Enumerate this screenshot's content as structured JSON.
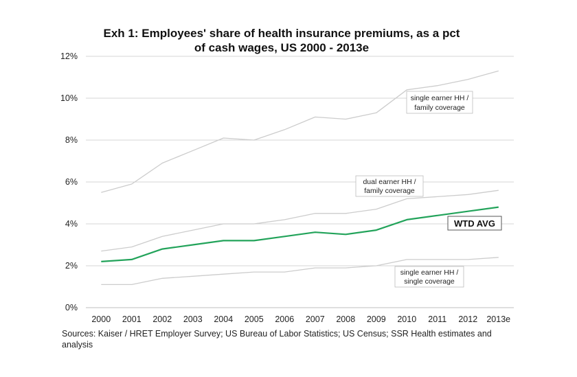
{
  "chart_data": {
    "type": "line",
    "title_lines": [
      "Exh 1: Employees' share of health insurance premiums, as a pct",
      "of cash wages, US 2000 - 2013e"
    ],
    "xlabel": "",
    "ylabel": "",
    "categories": [
      "2000",
      "2001",
      "2002",
      "2003",
      "2004",
      "2005",
      "2006",
      "2007",
      "2008",
      "2009",
      "2010",
      "2011",
      "2012",
      "2013e"
    ],
    "y_ticks": [
      "0%",
      "2%",
      "4%",
      "6%",
      "8%",
      "10%",
      "12%"
    ],
    "ylim": [
      0,
      12
    ],
    "grid": true,
    "series": [
      {
        "key": "single_family",
        "values": [
          5.5,
          5.9,
          6.9,
          7.5,
          8.1,
          8.0,
          8.5,
          9.1,
          9.0,
          9.3,
          10.4,
          10.6,
          10.9,
          11.3
        ],
        "color": "#cccccc",
        "label_lines": [
          "single earner HH /",
          "family coverage"
        ]
      },
      {
        "key": "dual_family",
        "values": [
          2.7,
          2.9,
          3.4,
          3.7,
          4.0,
          4.0,
          4.2,
          4.5,
          4.5,
          4.7,
          5.2,
          5.3,
          5.4,
          5.6
        ],
        "color": "#cccccc",
        "label_lines": [
          "dual earner HH /",
          "family coverage"
        ]
      },
      {
        "key": "wtd_avg",
        "values": [
          2.2,
          2.3,
          2.8,
          3.0,
          3.2,
          3.2,
          3.4,
          3.6,
          3.5,
          3.7,
          4.2,
          4.4,
          4.6,
          4.8
        ],
        "color": "#22a35a",
        "label_lines": [
          "WTD AVG"
        ]
      },
      {
        "key": "single_single",
        "values": [
          1.1,
          1.1,
          1.4,
          1.5,
          1.6,
          1.7,
          1.7,
          1.9,
          1.9,
          2.0,
          2.3,
          2.3,
          2.3,
          2.4
        ],
        "color": "#cccccc",
        "label_lines": [
          "single earner HH /",
          "single coverage"
        ]
      }
    ]
  },
  "source_lines": [
    "Sources: Kaiser / HRET Employer Survey; US Bureau of Labor Statistics; US Census; SSR Health estimates and",
    "analysis"
  ]
}
